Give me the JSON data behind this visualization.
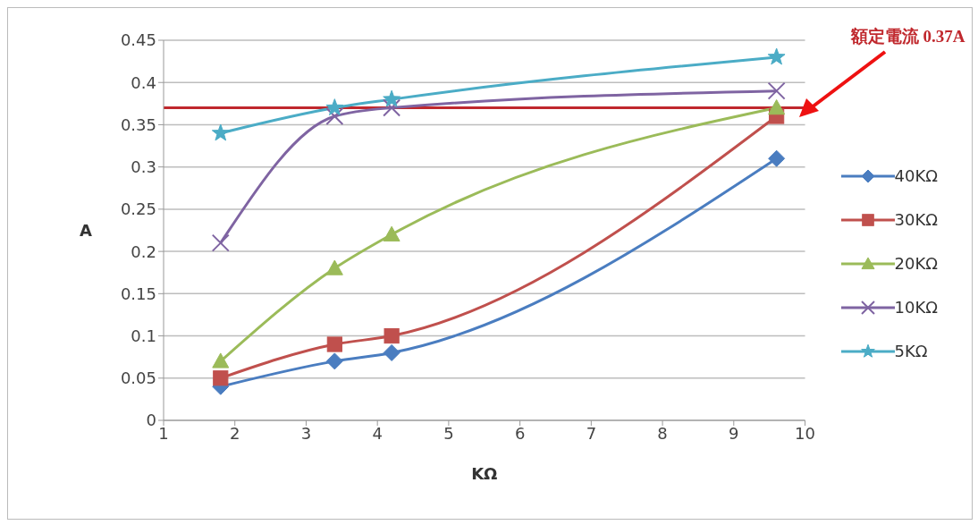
{
  "chart_data": {
    "type": "line",
    "xlabel": "KΩ",
    "ylabel": "A",
    "x": [
      1.8,
      3.4,
      4.2,
      9.6
    ],
    "series": [
      {
        "name": "40KΩ",
        "color": "#4a7dc0",
        "marker": "diamond",
        "values": [
          0.04,
          0.07,
          0.08,
          0.31
        ]
      },
      {
        "name": "30KΩ",
        "color": "#c0504d",
        "marker": "square",
        "values": [
          0.05,
          0.09,
          0.1,
          0.36
        ]
      },
      {
        "name": "20KΩ",
        "color": "#9bbb59",
        "marker": "triangle",
        "values": [
          0.07,
          0.18,
          0.22,
          0.37
        ]
      },
      {
        "name": "10KΩ",
        "color": "#7f64a2",
        "marker": "cross",
        "values": [
          0.21,
          0.36,
          0.37,
          0.39
        ]
      },
      {
        "name": "5KΩ",
        "color": "#4bacc6",
        "marker": "star",
        "values": [
          0.34,
          0.37,
          0.38,
          0.43
        ]
      }
    ],
    "xlim": [
      1,
      10
    ],
    "xticks": [
      1,
      2,
      3,
      4,
      5,
      6,
      7,
      8,
      9,
      10
    ],
    "ylim": [
      0,
      0.45
    ],
    "yticks": [
      0,
      0.05,
      0.1,
      0.15,
      0.2,
      0.25,
      0.3,
      0.35,
      0.4,
      0.45
    ],
    "grid": "y",
    "legend": "right",
    "line_style": "solid",
    "ref_lines": [
      {
        "axis": "y",
        "value": 0.37,
        "label": "額定電流 0.37A",
        "color": "#c0282d"
      }
    ]
  }
}
